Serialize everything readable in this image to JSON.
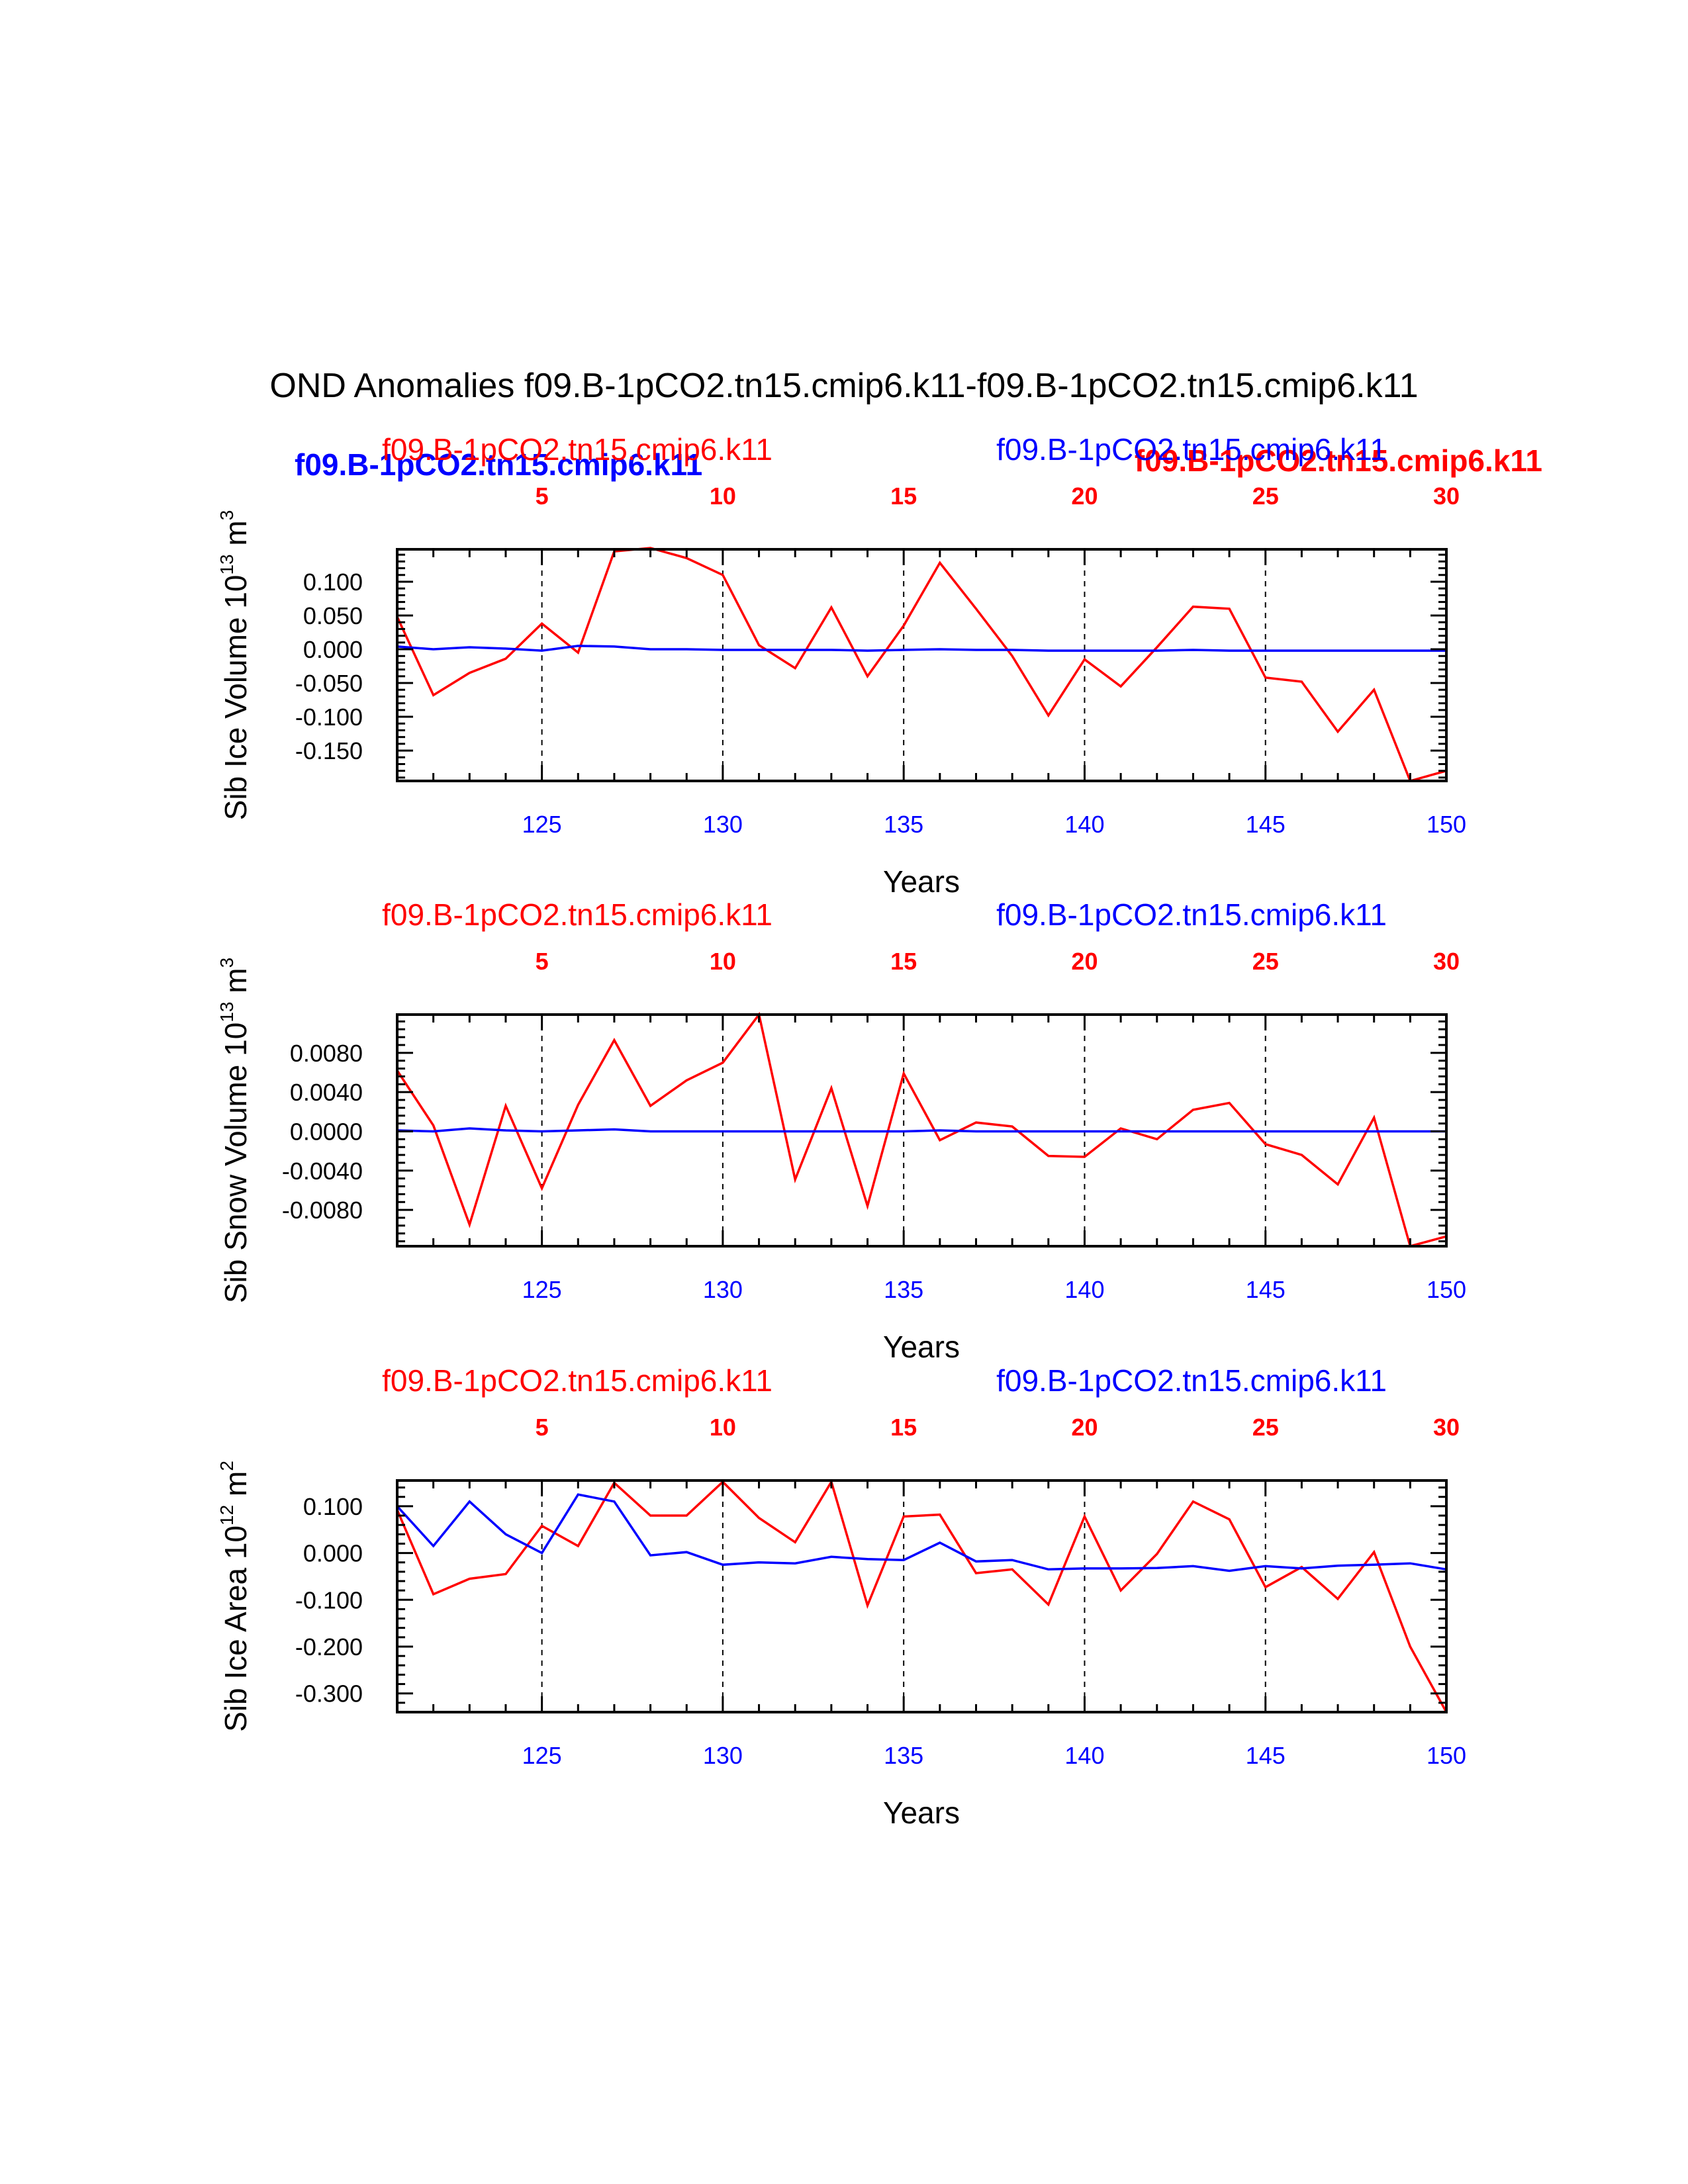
{
  "title": "OND Anomalies f09.B-1pCO2.tn15.cmip6.k11-f09.B-1pCO2.tn15.cmip6.k11",
  "colors": {
    "case1": "#ff0000",
    "case2": "#0000ff",
    "axis": "#000000"
  },
  "overlap_labels": {
    "case2_bold": "f09.B-1pCO2.tn15.cmip6.k11",
    "case1_bold": "f09.B-1pCO2.tn15.cmip6.k11"
  },
  "chart_data": [
    {
      "type": "line",
      "ylabel_main": "Sib Ice Volume 10",
      "ylabel_exp": "13",
      "ylabel_unit": " m",
      "ylabel_unit_exp": "3",
      "xlabel": "Years",
      "case1_label": "f09.B-1pCO2.tn15.cmip6.k11",
      "case2_label": "f09.B-1pCO2.tn15.cmip6.k11",
      "bottom_ticks": [
        "125",
        "130",
        "135",
        "140",
        "145",
        "150"
      ],
      "bottom_tick_values": [
        125,
        130,
        135,
        140,
        145,
        150
      ],
      "top_ticks": [
        "5",
        "10",
        "15",
        "20",
        "25",
        "30"
      ],
      "top_tick_values": [
        5,
        10,
        15,
        20,
        25,
        30
      ],
      "ytick_labels": [
        "0.100",
        "0.050",
        "0.000",
        "-0.050",
        "-0.100",
        "-0.150"
      ],
      "ytick_values": [
        0.1,
        0.05,
        0.0,
        -0.05,
        -0.1,
        -0.15
      ],
      "ylim": [
        -0.195,
        0.148
      ],
      "xlim": [
        121,
        150
      ],
      "x": [
        121,
        122,
        123,
        124,
        125,
        126,
        127,
        128,
        129,
        130,
        131,
        132,
        133,
        134,
        135,
        136,
        137,
        138,
        139,
        140,
        141,
        142,
        143,
        144,
        145,
        146,
        147,
        148,
        149,
        150
      ],
      "series": [
        {
          "name": "f09.B-1pCO2.tn15.cmip6.k11",
          "color": "#ff0000",
          "values": [
            0.048,
            -0.068,
            -0.035,
            -0.014,
            0.038,
            -0.005,
            0.145,
            0.15,
            0.135,
            0.11,
            0.006,
            -0.028,
            0.062,
            -0.04,
            0.035,
            0.128,
            0.06,
            -0.01,
            -0.098,
            -0.015,
            -0.055,
            0.003,
            0.063,
            0.06,
            -0.042,
            -0.048,
            -0.122,
            -0.06,
            -0.195,
            -0.18
          ]
        },
        {
          "name": "f09.B-1pCO2.tn15.cmip6.k11",
          "color": "#0000ff",
          "values": [
            0.004,
            0.0,
            0.003,
            0.001,
            -0.002,
            0.005,
            0.004,
            0.0,
            0.0,
            -0.001,
            -0.001,
            -0.001,
            -0.001,
            -0.002,
            -0.001,
            0.0,
            -0.001,
            -0.001,
            -0.002,
            -0.002,
            -0.002,
            -0.002,
            -0.001,
            -0.002,
            -0.002,
            -0.002,
            -0.002,
            -0.002,
            -0.002,
            -0.002
          ]
        }
      ]
    },
    {
      "type": "line",
      "ylabel_main": "Sib Snow Volume 10",
      "ylabel_exp": "13",
      "ylabel_unit": " m",
      "ylabel_unit_exp": "3",
      "xlabel": "Years",
      "case1_label": "f09.B-1pCO2.tn15.cmip6.k11",
      "case2_label": "f09.B-1pCO2.tn15.cmip6.k11",
      "bottom_ticks": [
        "125",
        "130",
        "135",
        "140",
        "145",
        "150"
      ],
      "bottom_tick_values": [
        125,
        130,
        135,
        140,
        145,
        150
      ],
      "top_ticks": [
        "5",
        "10",
        "15",
        "20",
        "25",
        "30"
      ],
      "top_tick_values": [
        5,
        10,
        15,
        20,
        25,
        30
      ],
      "ytick_labels": [
        "0.0080",
        "0.0040",
        "0.0000",
        "-0.0040",
        "-0.0080"
      ],
      "ytick_values": [
        0.008,
        0.004,
        0.0,
        -0.004,
        -0.008
      ],
      "ylim": [
        -0.0117,
        0.0119
      ],
      "xlim": [
        121,
        150
      ],
      "x": [
        121,
        122,
        123,
        124,
        125,
        126,
        127,
        128,
        129,
        130,
        131,
        132,
        133,
        134,
        135,
        136,
        137,
        138,
        139,
        140,
        141,
        142,
        143,
        144,
        145,
        146,
        147,
        148,
        149,
        150
      ],
      "series": [
        {
          "name": "f09.B-1pCO2.tn15.cmip6.k11",
          "color": "#ff0000",
          "values": [
            0.0062,
            0.0006,
            -0.0095,
            0.0026,
            -0.0058,
            0.0027,
            0.0093,
            0.0026,
            0.0052,
            0.007,
            0.0119,
            -0.0049,
            0.0044,
            -0.0076,
            0.0059,
            -0.0009,
            0.0009,
            0.0005,
            -0.0025,
            -0.0026,
            0.0003,
            -0.0008,
            0.0022,
            0.0029,
            -0.0013,
            -0.0024,
            -0.0054,
            0.0014,
            -0.0117,
            -0.0107
          ]
        },
        {
          "name": "f09.B-1pCO2.tn15.cmip6.k11",
          "color": "#0000ff",
          "values": [
            0.0001,
            0.0,
            0.0003,
            0.0001,
            0.0,
            0.0001,
            0.0002,
            0.0,
            0.0,
            0.0,
            0.0,
            0.0,
            0.0,
            0.0,
            0.0,
            0.0001,
            0.0,
            0.0,
            0.0,
            0.0,
            0.0,
            0.0,
            0.0,
            0.0,
            0.0,
            0.0,
            0.0,
            0.0,
            0.0,
            0.0
          ]
        }
      ]
    },
    {
      "type": "line",
      "ylabel_main": "Sib Ice Area 10",
      "ylabel_exp": "12",
      "ylabel_unit": " m",
      "ylabel_unit_exp": "2",
      "xlabel": "Years",
      "case1_label": "f09.B-1pCO2.tn15.cmip6.k11",
      "case2_label": "f09.B-1pCO2.tn15.cmip6.k11",
      "bottom_ticks": [
        "125",
        "130",
        "135",
        "140",
        "145",
        "150"
      ],
      "bottom_tick_values": [
        125,
        130,
        135,
        140,
        145,
        150
      ],
      "top_ticks": [
        "5",
        "10",
        "15",
        "20",
        "25",
        "30"
      ],
      "top_tick_values": [
        5,
        10,
        15,
        20,
        25,
        30
      ],
      "ytick_labels": [
        "0.100",
        "0.000",
        "-0.100",
        "-0.200",
        "-0.300"
      ],
      "ytick_values": [
        0.1,
        0.0,
        -0.1,
        -0.2,
        -0.3
      ],
      "ylim": [
        -0.34,
        0.155
      ],
      "xlim": [
        121,
        150
      ],
      "x": [
        121,
        122,
        123,
        124,
        125,
        126,
        127,
        128,
        129,
        130,
        131,
        132,
        133,
        134,
        135,
        136,
        137,
        138,
        139,
        140,
        141,
        142,
        143,
        144,
        145,
        146,
        147,
        148,
        149,
        150
      ],
      "series": [
        {
          "name": "f09.B-1pCO2.tn15.cmip6.k11",
          "color": "#ff0000",
          "values": [
            0.092,
            -0.088,
            -0.055,
            -0.045,
            0.058,
            0.015,
            0.15,
            0.08,
            0.08,
            0.152,
            0.075,
            0.023,
            0.152,
            -0.112,
            0.078,
            0.082,
            -0.043,
            -0.035,
            -0.11,
            0.078,
            -0.08,
            -0.002,
            0.11,
            0.072,
            -0.073,
            -0.03,
            -0.098,
            0.002,
            -0.2,
            -0.34
          ]
        },
        {
          "name": "f09.B-1pCO2.tn15.cmip6.k11",
          "color": "#0000ff",
          "values": [
            0.1,
            0.015,
            0.11,
            0.04,
            0.0,
            0.125,
            0.11,
            -0.005,
            0.002,
            -0.025,
            -0.02,
            -0.022,
            -0.008,
            -0.013,
            -0.015,
            0.022,
            -0.018,
            -0.015,
            -0.035,
            -0.033,
            -0.033,
            -0.032,
            -0.028,
            -0.038,
            -0.028,
            -0.033,
            -0.027,
            -0.025,
            -0.022,
            -0.035
          ]
        }
      ]
    }
  ]
}
